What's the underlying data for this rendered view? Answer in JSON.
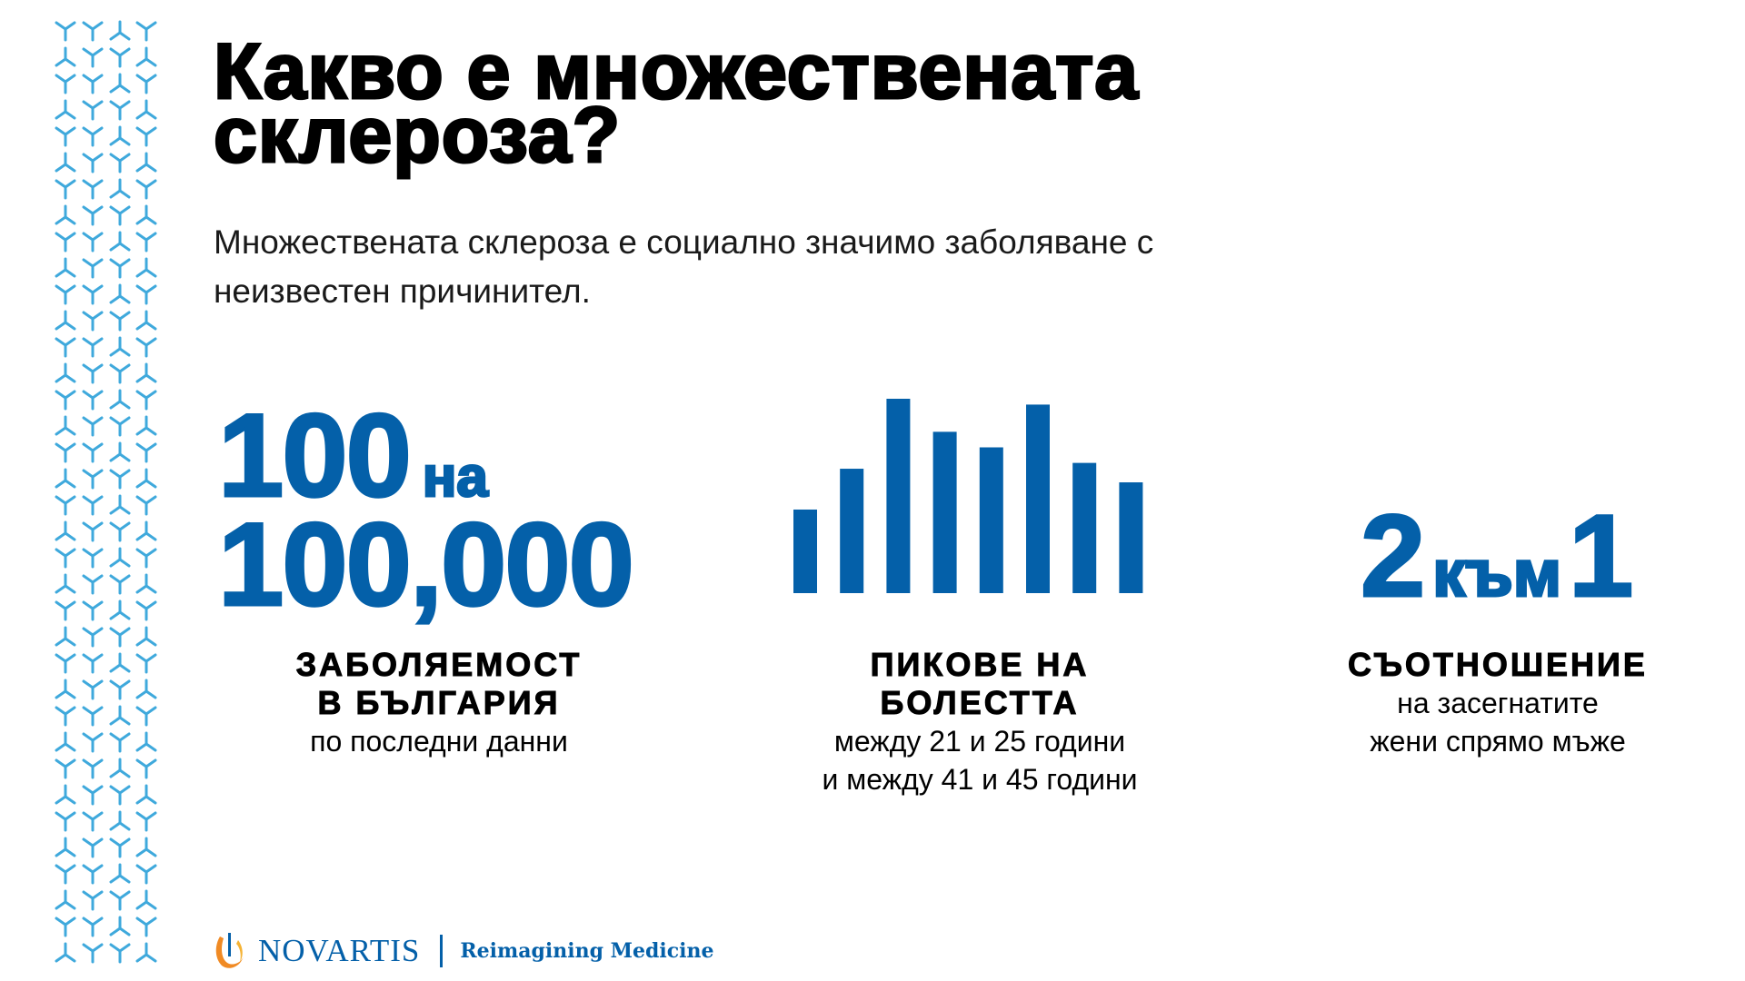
{
  "title": [
    "Какво е множествената",
    "склероза?"
  ],
  "subtitle": [
    "Множествената склероза е социално значимо заболяване с",
    "неизвестен причинител."
  ],
  "stats": [
    {
      "big_line1": "100",
      "big_unit": "на",
      "big_line2": "100,000",
      "label_bold": [
        "ЗАБОЛЯЕМОСТ",
        "В БЪЛГАРИЯ"
      ],
      "label": [
        "по последни данни"
      ]
    },
    {
      "label_bold": [
        "ПИКОВЕ НА",
        "БОЛЕСТТА"
      ],
      "label": [
        "между 21 и 25 години",
        "и между 41 и 45 години"
      ]
    },
    {
      "big_left": "2",
      "big_unit": "към",
      "big_right": "1",
      "label_bold": [
        "СЪОТНОШЕНИЕ"
      ],
      "label": [
        "на засегнатите",
        "жени спрямо мъже"
      ]
    }
  ],
  "peaks_graphic": {
    "relative_heights": [
      0.43,
      0.64,
      1.0,
      0.83,
      0.75,
      0.97,
      0.67,
      0.57
    ]
  },
  "logo": {
    "brand": "NOVARTIS",
    "tagline": "Reimagining Medicine"
  },
  "colors": {
    "accent": "#0460a9",
    "pattern": "#3fa9dc",
    "logo_flame": "#f08a24"
  }
}
